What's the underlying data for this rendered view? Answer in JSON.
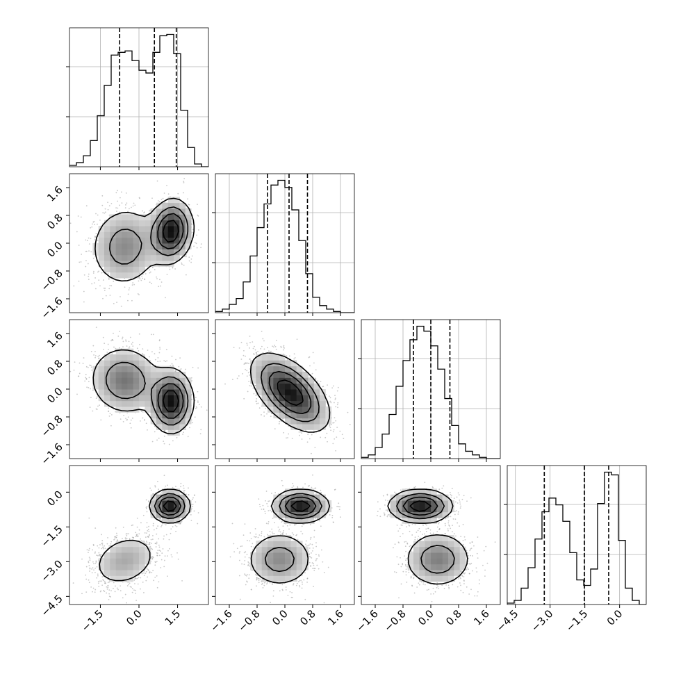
{
  "chart_data": {
    "type": "corner",
    "n_params": 4,
    "params": [
      {
        "name": "",
        "range": [
          -2.7,
          2.7
        ],
        "ticks": [
          -1.5,
          0.0,
          1.5
        ],
        "tick_labels": [
          "−1.5",
          "0.0",
          "1.5"
        ],
        "quantiles": [
          -0.75,
          0.6,
          1.45
        ],
        "hist_start": -2.7,
        "hist_step": 0.27,
        "hist_values": [
          1,
          3,
          8,
          19,
          37,
          59,
          81,
          83,
          84,
          77,
          70,
          68,
          83,
          95,
          96,
          82,
          41,
          14,
          2,
          0
        ]
      },
      {
        "name": "",
        "range": [
          -2.0,
          2.0
        ],
        "ticks": [
          -1.6,
          -0.8,
          0.0,
          0.8,
          1.6
        ],
        "tick_labels": [
          "−1.6",
          "−0.8",
          "0.0",
          "0.8",
          "1.6"
        ],
        "quantiles": [
          -0.5,
          0.12,
          0.65
        ],
        "hist_start": -2.0,
        "hist_step": 0.2,
        "hist_values": [
          1,
          3,
          7,
          12,
          26,
          48,
          72,
          92,
          108,
          112,
          106,
          87,
          61,
          33,
          13,
          6,
          3,
          1,
          0,
          0
        ]
      },
      {
        "name": "",
        "range": [
          -2.0,
          2.0
        ],
        "ticks": [
          -1.6,
          -0.8,
          0.0,
          0.8,
          1.6
        ],
        "tick_labels": [
          "−1.6",
          "−0.8",
          "0.0",
          "0.8",
          "1.6"
        ],
        "quantiles": [
          -0.5,
          0.0,
          0.55
        ],
        "hist_start": -2.0,
        "hist_step": 0.2,
        "hist_values": [
          1,
          3,
          9,
          20,
          36,
          59,
          80,
          97,
          108,
          104,
          92,
          73,
          49,
          27,
          12,
          6,
          3,
          1,
          0,
          0
        ]
      },
      {
        "name": "",
        "range": [
          -4.85,
          1.15
        ],
        "ticks": [
          -4.5,
          -3.0,
          -1.5,
          0.0
        ],
        "tick_labels": [
          "−4.5",
          "−3.0",
          "−1.5",
          "0.0"
        ],
        "quantiles": [
          -3.25,
          -1.52,
          -0.47
        ],
        "hist_start": -4.85,
        "hist_step": 0.3,
        "hist_values": [
          1,
          3,
          12,
          27,
          48,
          68,
          78,
          73,
          61,
          38,
          18,
          14,
          26,
          74,
          97,
          95,
          47,
          12,
          3,
          0
        ]
      }
    ],
    "pairs": [
      {
        "x": 0,
        "y": 1,
        "modes": [
          {
            "mx": -0.55,
            "my": -0.1,
            "sx": 0.7,
            "sy": 0.6,
            "rho": 0.05,
            "w": 0.5
          },
          {
            "mx": 1.25,
            "my": 0.35,
            "sx": 0.42,
            "sy": 0.45,
            "rho": 0.1,
            "w": 0.5
          }
        ]
      },
      {
        "x": 0,
        "y": 2,
        "modes": [
          {
            "mx": -0.55,
            "my": 0.25,
            "sx": 0.7,
            "sy": 0.5,
            "rho": -0.05,
            "w": 0.5
          },
          {
            "mx": 1.25,
            "my": -0.35,
            "sx": 0.42,
            "sy": 0.45,
            "rho": 0.0,
            "w": 0.5
          }
        ]
      },
      {
        "x": 1,
        "y": 2,
        "modes": [
          {
            "mx": 0.15,
            "my": -0.1,
            "sx": 0.55,
            "sy": 0.55,
            "rho": -0.55,
            "w": 1.0
          }
        ]
      },
      {
        "x": 0,
        "y": 3,
        "modes": [
          {
            "mx": -0.55,
            "my": -2.95,
            "sx": 0.7,
            "sy": 0.62,
            "rho": 0.25,
            "w": 0.5
          },
          {
            "mx": 1.2,
            "my": -0.6,
            "sx": 0.38,
            "sy": 0.35,
            "rho": 0.0,
            "w": 0.5
          }
        ]
      },
      {
        "x": 1,
        "y": 3,
        "modes": [
          {
            "mx": -0.15,
            "my": -2.9,
            "sx": 0.5,
            "sy": 0.62,
            "rho": 0.0,
            "w": 0.5
          },
          {
            "mx": 0.45,
            "my": -0.6,
            "sx": 0.4,
            "sy": 0.35,
            "rho": 0.0,
            "w": 0.5
          }
        ]
      },
      {
        "x": 2,
        "y": 3,
        "modes": [
          {
            "mx": 0.2,
            "my": -2.9,
            "sx": 0.5,
            "sy": 0.62,
            "rho": 0.0,
            "w": 0.5
          },
          {
            "mx": -0.3,
            "my": -0.6,
            "sx": 0.45,
            "sy": 0.35,
            "rho": 0.0,
            "w": 0.5
          }
        ]
      }
    ],
    "grid": true,
    "colors": {
      "line": "#000000",
      "grid": "#b0b0b0",
      "points": "#9a9a9a"
    }
  }
}
